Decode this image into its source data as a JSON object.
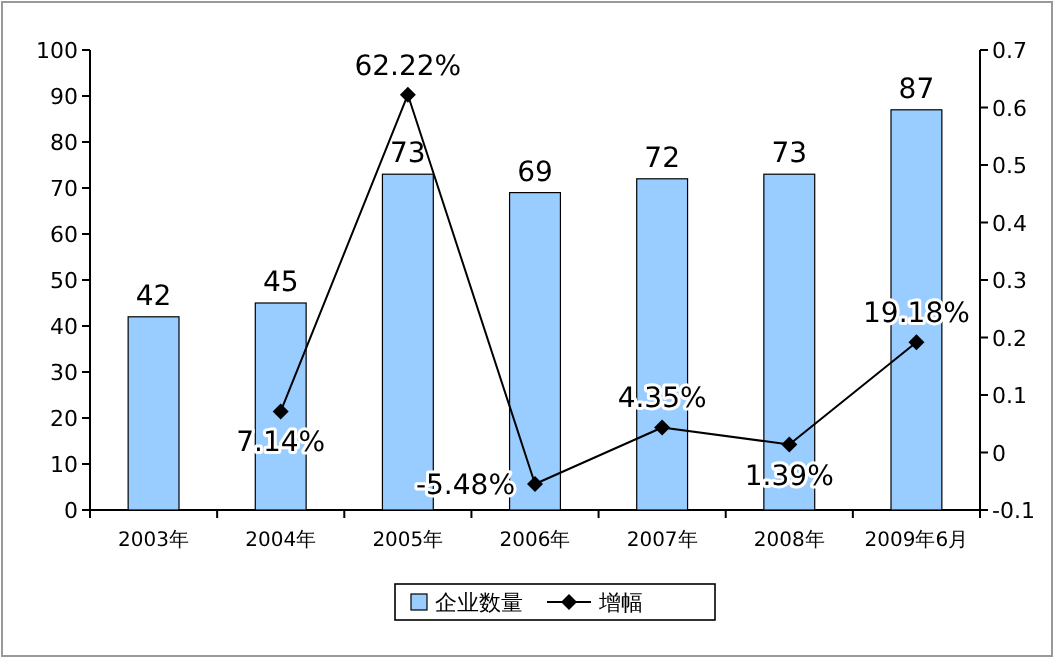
{
  "chart_data": {
    "type": "bar",
    "categories": [
      "2003年",
      "2004年",
      "2005年",
      "2006年",
      "2007年",
      "2008年",
      "2009年6月"
    ],
    "series": [
      {
        "name": "企业数量",
        "color": "#99ccff",
        "values": [
          42,
          45,
          73,
          69,
          72,
          73,
          87
        ],
        "value_labels": [
          "42",
          "45",
          "73",
          "69",
          "72",
          "73",
          "87"
        ]
      },
      {
        "name": "增幅",
        "type": "line",
        "axis": "y2",
        "color": "#000000",
        "marker": "diamond",
        "values": [
          null,
          0.0714,
          0.6222,
          -0.0548,
          0.0435,
          0.0139,
          0.1918
        ],
        "value_labels": [
          null,
          "7.14%",
          "62.22%",
          "-5.48%",
          "4.35%",
          "1.39%",
          "19.18%"
        ]
      }
    ],
    "ylim": [
      0,
      100
    ],
    "yticks": [
      0,
      10,
      20,
      30,
      40,
      50,
      60,
      70,
      80,
      90,
      100
    ],
    "y2lim": [
      -0.1,
      0.7
    ],
    "y2ticks": [
      -0.1,
      0,
      0.1,
      0.2,
      0.3,
      0.4,
      0.5,
      0.6,
      0.7
    ],
    "grid": false,
    "legend": "bottom"
  }
}
